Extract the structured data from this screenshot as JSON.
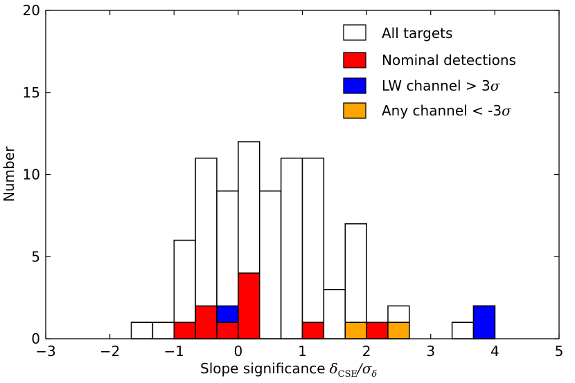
{
  "chart_data": {
    "type": "bar",
    "subtype": "stacked-histogram",
    "title": "",
    "xlabel": "Slope significance",
    "xlabel_math": "δCSE/σδ",
    "xlabel_math_parts": {
      "delta": "δ",
      "delta_sub": "CSE",
      "slash": "/",
      "sigma": "σ",
      "sigma_sub": "δ"
    },
    "ylabel": "Number",
    "xlim": [
      -3,
      5
    ],
    "ylim": [
      0,
      20
    ],
    "xticks": [
      -3,
      -2,
      -1,
      0,
      1,
      2,
      3,
      4,
      5
    ],
    "xtick_labels": [
      "−3",
      "−2",
      "−1",
      "0",
      "1",
      "2",
      "3",
      "4",
      "5"
    ],
    "yticks": [
      0,
      5,
      10,
      15,
      20
    ],
    "ytick_labels": [
      "0",
      "5",
      "10",
      "15",
      "20"
    ],
    "bin_width": 0.333,
    "bin_lefts": [
      -1.667,
      -1.333,
      -1.0,
      -0.667,
      -0.333,
      0.0,
      0.333,
      0.667,
      1.0,
      1.333,
      1.667,
      2.0,
      2.333,
      3.333,
      3.667
    ],
    "series": [
      {
        "name": "All targets",
        "color": "#ffffff",
        "style": "outline",
        "values": [
          1,
          1,
          6,
          11,
          9,
          12,
          9,
          11,
          11,
          3,
          7,
          0,
          2,
          1,
          2
        ]
      },
      {
        "name": "Nominal detections",
        "color": "#ff0000",
        "style": "stack",
        "values": [
          0,
          0,
          1,
          2,
          1,
          4,
          0,
          0,
          1,
          0,
          0,
          1,
          0,
          0,
          0
        ]
      },
      {
        "name": "LW channel > 3σ",
        "color": "#0000ff",
        "style": "stack",
        "values": [
          0,
          0,
          0,
          0,
          1,
          0,
          0,
          0,
          0,
          0,
          0,
          0,
          0,
          0,
          2
        ]
      },
      {
        "name": "Any channel < -3σ",
        "color": "#ffa500",
        "style": "stack",
        "values": [
          0,
          0,
          0,
          0,
          0,
          0,
          0,
          0,
          0,
          0,
          1,
          0,
          1,
          0,
          0
        ]
      }
    ],
    "legend": {
      "position": "top-right",
      "entries": [
        {
          "label": "All targets",
          "color": "#ffffff"
        },
        {
          "label": "Nominal detections",
          "color": "#ff0000"
        },
        {
          "label_prefix": "LW channel > 3",
          "label_sigma": "σ",
          "color": "#0000ff"
        },
        {
          "label_prefix": "Any channel < -3",
          "label_sigma": "σ",
          "color": "#ffa500"
        }
      ]
    }
  }
}
